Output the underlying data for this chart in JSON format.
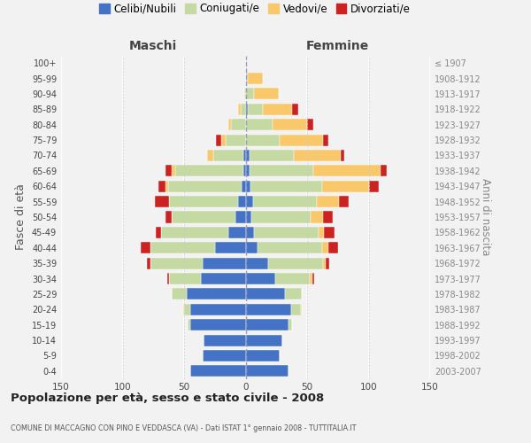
{
  "age_groups": [
    "0-4",
    "5-9",
    "10-14",
    "15-19",
    "20-24",
    "25-29",
    "30-34",
    "35-39",
    "40-44",
    "45-49",
    "50-54",
    "55-59",
    "60-64",
    "65-69",
    "70-74",
    "75-79",
    "80-84",
    "85-89",
    "90-94",
    "95-99",
    "100+"
  ],
  "birth_years": [
    "2003-2007",
    "1998-2002",
    "1993-1997",
    "1988-1992",
    "1983-1987",
    "1978-1982",
    "1973-1977",
    "1968-1972",
    "1963-1967",
    "1958-1962",
    "1953-1957",
    "1948-1952",
    "1943-1947",
    "1938-1942",
    "1933-1937",
    "1928-1932",
    "1923-1927",
    "1918-1922",
    "1913-1917",
    "1908-1912",
    "≤ 1907"
  ],
  "males": {
    "celibi": [
      45,
      35,
      34,
      45,
      45,
      48,
      36,
      35,
      25,
      14,
      8,
      6,
      3,
      2,
      2,
      0,
      0,
      0,
      0,
      0,
      0
    ],
    "coniugati": [
      0,
      0,
      0,
      2,
      5,
      12,
      26,
      42,
      52,
      55,
      52,
      56,
      60,
      55,
      24,
      16,
      12,
      4,
      1,
      0,
      0
    ],
    "vedovi": [
      0,
      0,
      0,
      0,
      1,
      0,
      0,
      0,
      0,
      0,
      0,
      0,
      2,
      3,
      5,
      4,
      2,
      2,
      0,
      0,
      0
    ],
    "divorziati": [
      0,
      0,
      0,
      0,
      0,
      0,
      2,
      3,
      8,
      4,
      5,
      12,
      6,
      5,
      0,
      4,
      0,
      0,
      0,
      0,
      0
    ]
  },
  "females": {
    "nubili": [
      35,
      28,
      30,
      35,
      37,
      32,
      24,
      18,
      10,
      7,
      5,
      6,
      4,
      3,
      3,
      0,
      0,
      2,
      0,
      0,
      0
    ],
    "coniugate": [
      0,
      0,
      0,
      3,
      8,
      14,
      28,
      45,
      52,
      52,
      48,
      52,
      58,
      52,
      36,
      28,
      22,
      12,
      7,
      2,
      0
    ],
    "vedove": [
      0,
      0,
      0,
      0,
      1,
      0,
      2,
      2,
      5,
      5,
      10,
      18,
      38,
      55,
      38,
      35,
      28,
      24,
      20,
      12,
      1
    ],
    "divorziate": [
      0,
      0,
      0,
      0,
      0,
      0,
      2,
      3,
      8,
      8,
      8,
      8,
      8,
      5,
      3,
      4,
      5,
      5,
      0,
      0,
      0
    ]
  },
  "colors": {
    "celibi": "#4472C4",
    "coniugati": "#C5D9A3",
    "vedovi": "#F9C86A",
    "divorziati": "#CC2222"
  },
  "xlim": 150,
  "title": "Popolazione per età, sesso e stato civile - 2008",
  "subtitle": "COMUNE DI MACCAGNO CON PINO E VEDDASCA (VA) - Dati ISTAT 1° gennaio 2008 - TUTTITALIA.IT",
  "ylabel_left": "Fasce di età",
  "ylabel_right": "Anni di nascita",
  "xlabel_maschi": "Maschi",
  "xlabel_femmine": "Femmine",
  "legend_labels": [
    "Celibi/Nubili",
    "Coniugati/e",
    "Vedovi/e",
    "Divorziati/e"
  ],
  "bg_color": "#f2f2f2",
  "bar_height": 0.75
}
